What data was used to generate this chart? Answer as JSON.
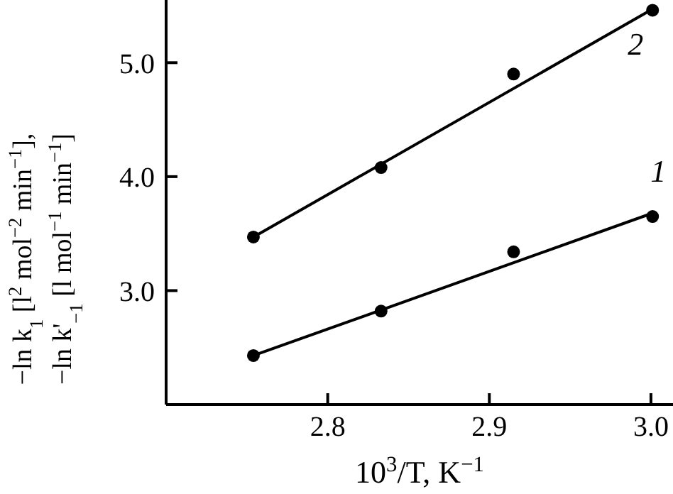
{
  "chart_data": {
    "type": "scatter",
    "xlabel": "10$^{3}$/T, K$^{−1}$",
    "ylabel": "−ln k$_{1}$ [l$^{2}$ mol$^{−2}$ min$^{−1}$],\n−ln k'$_{−1}$ [l mol$^{−1}$ min$^{−1}$]",
    "series": [
      {
        "color": "#000000",
        "x": [
          2.754,
          2.833,
          2.915,
          3.001
        ],
        "values": [
          2.43,
          2.82,
          3.34,
          3.65
        ]
      },
      {
        "color": "#000000",
        "x": [
          2.754,
          2.833,
          2.915,
          3.001
        ],
        "values": [
          3.47,
          4.08,
          4.9,
          5.46
        ]
      },
      {
        "type": "line",
        "name": "1",
        "color": "#000000",
        "marker": "none",
        "x": [
          2.754,
          3.001
        ],
        "values": [
          2.43,
          3.68
        ]
      },
      {
        "type": "line",
        "name": "2",
        "color": "#000000",
        "marker": "none",
        "x": [
          2.754,
          3.001
        ],
        "values": [
          3.47,
          5.47
        ]
      }
    ],
    "xlim": [
      2.7,
      3.04
    ],
    "xticks": [
      2.8,
      2.9,
      {
        "value": 3,
        "label": "3.0"
      }
    ],
    "ylim": [
      2.0,
      5.55
    ],
    "yticks": [
      {
        "value": 3,
        "label": "3.0"
      },
      {
        "value": 4,
        "label": "4.0"
      },
      {
        "value": 5,
        "label": "5.0"
      }
    ],
    "grid": false,
    "legend": false,
    "marker": "circle",
    "line_style": "solid"
  }
}
